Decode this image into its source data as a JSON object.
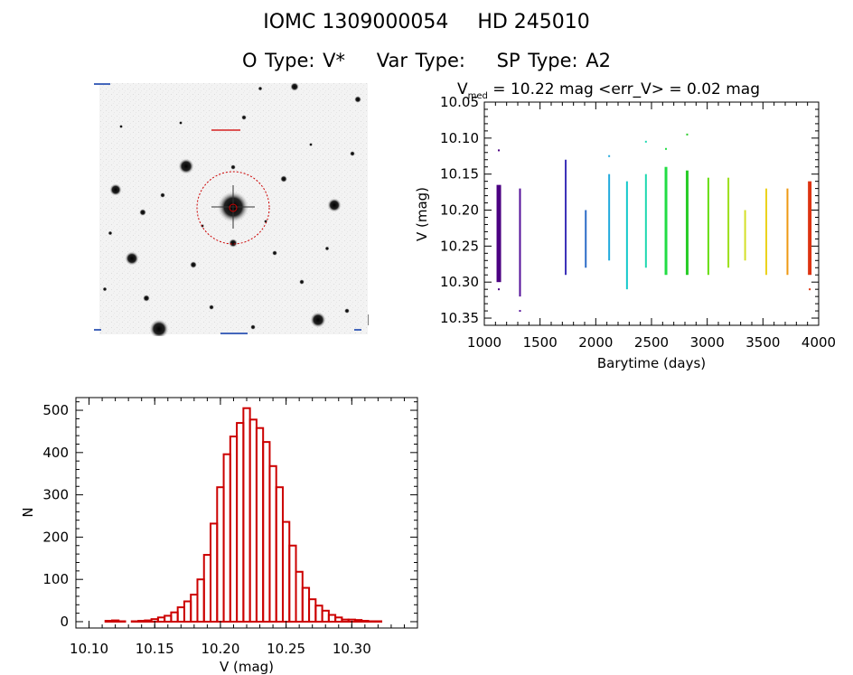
{
  "header": {
    "id": "IOMC 1309000054",
    "name": "HD 245010",
    "otype_label": "O Type: V*",
    "vartype_label": "Var Type:",
    "sptype_label": "SP Type: A2"
  },
  "sky_image": {
    "description_icon": "star-field-image"
  },
  "colors": {
    "hist": "#cc0000",
    "circle": "#cc0000"
  },
  "chart_data": [
    {
      "type": "scatter",
      "title_prefix": "V",
      "title_sub": "med",
      "title_rest": " = 10.22 mag <err_V> = 0.02 mag",
      "xlabel": "Barytime (days)",
      "ylabel": "V (mag)",
      "xlim": [
        1000,
        4000
      ],
      "ylim": [
        10.05,
        10.36
      ],
      "y_inverted": true,
      "xticks": [
        "1000",
        "1500",
        "2000",
        "2500",
        "3000",
        "3500",
        "4000"
      ],
      "yticks": [
        "10.05",
        "10.10",
        "10.15",
        "10.20",
        "10.25",
        "10.30",
        "10.35"
      ],
      "groups": [
        {
          "x": 1130,
          "ymin": 10.165,
          "ymax": 10.3,
          "outliers": [
            10.117,
            10.31
          ],
          "color": "#4b0082",
          "width": 5
        },
        {
          "x": 1320,
          "ymin": 10.17,
          "ymax": 10.32,
          "outliers": [
            10.34
          ],
          "color": "#55109a",
          "width": 2
        },
        {
          "x": 1730,
          "ymin": 10.13,
          "ymax": 10.29,
          "outliers": [],
          "color": "#3a2fb8",
          "width": 2
        },
        {
          "x": 1910,
          "ymin": 10.2,
          "ymax": 10.28,
          "outliers": [],
          "color": "#2c6cc8",
          "width": 2
        },
        {
          "x": 2120,
          "ymin": 10.15,
          "ymax": 10.27,
          "outliers": [
            10.125
          ],
          "color": "#22aadd",
          "width": 2
        },
        {
          "x": 2280,
          "ymin": 10.16,
          "ymax": 10.31,
          "outliers": [],
          "color": "#14c9cc",
          "width": 2
        },
        {
          "x": 2450,
          "ymin": 10.15,
          "ymax": 10.28,
          "outliers": [
            10.105
          ],
          "color": "#1fd8b0",
          "width": 2
        },
        {
          "x": 2630,
          "ymin": 10.14,
          "ymax": 10.29,
          "outliers": [
            10.115
          ],
          "color": "#22dd44",
          "width": 3
        },
        {
          "x": 2820,
          "ymin": 10.145,
          "ymax": 10.29,
          "outliers": [
            10.095
          ],
          "color": "#28cc28",
          "width": 3
        },
        {
          "x": 3010,
          "ymin": 10.155,
          "ymax": 10.29,
          "outliers": [],
          "color": "#66dd11",
          "width": 2
        },
        {
          "x": 3190,
          "ymin": 10.155,
          "ymax": 10.28,
          "outliers": [],
          "color": "#9adf1a",
          "width": 2
        },
        {
          "x": 3340,
          "ymin": 10.2,
          "ymax": 10.27,
          "outliers": [],
          "color": "#d4e02a",
          "width": 2
        },
        {
          "x": 3530,
          "ymin": 10.17,
          "ymax": 10.29,
          "outliers": [],
          "color": "#ecd21a",
          "width": 2
        },
        {
          "x": 3720,
          "ymin": 10.17,
          "ymax": 10.29,
          "outliers": [],
          "color": "#ee9912",
          "width": 2
        },
        {
          "x": 3920,
          "ymin": 10.16,
          "ymax": 10.29,
          "outliers": [
            10.31
          ],
          "color": "#dd3311",
          "width": 4
        }
      ]
    },
    {
      "type": "bar",
      "subtype": "histogram",
      "xlabel": "V (mag)",
      "ylabel": "N",
      "xlim": [
        10.09,
        10.35
      ],
      "ylim": [
        -15,
        530
      ],
      "xticks": [
        "10.10",
        "10.15",
        "10.20",
        "10.25",
        "10.30"
      ],
      "yticks": [
        "0",
        "100",
        "200",
        "300",
        "400",
        "500"
      ],
      "bin_start": 10.0975,
      "bin_width": 0.005,
      "values": [
        0,
        0,
        0,
        2,
        3,
        1,
        0,
        1,
        2,
        3,
        6,
        10,
        14,
        22,
        34,
        48,
        64,
        100,
        158,
        232,
        318,
        396,
        438,
        470,
        505,
        478,
        458,
        425,
        368,
        318,
        236,
        180,
        118,
        80,
        53,
        38,
        26,
        16,
        10,
        5,
        5,
        4,
        2,
        1,
        1,
        0,
        0,
        0,
        0,
        0
      ]
    }
  ]
}
